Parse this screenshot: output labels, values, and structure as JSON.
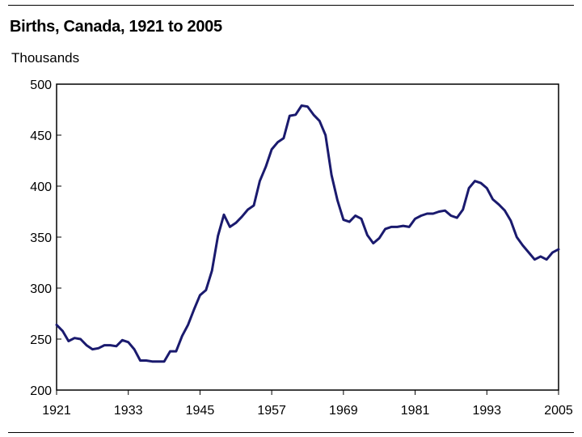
{
  "chart_data": {
    "type": "line",
    "title": "Births, Canada, 1921 to 2005",
    "ylabel": "Thousands",
    "xlabel": "",
    "xlim": [
      1921,
      2005
    ],
    "ylim": [
      200,
      500
    ],
    "xticks": [
      "1921",
      "1933",
      "1945",
      "1957",
      "1969",
      "1981",
      "1993",
      "2005"
    ],
    "yticks": [
      "200",
      "250",
      "300",
      "350",
      "400",
      "450",
      "500"
    ],
    "grid": false,
    "legend": "none",
    "line_color": "#1a1a6e",
    "series": [
      {
        "x": [
          1921,
          1922,
          1923,
          1924,
          1925,
          1926,
          1927,
          1928,
          1929,
          1930,
          1931,
          1932,
          1933,
          1934,
          1935,
          1936,
          1937,
          1938,
          1939,
          1940,
          1941,
          1942,
          1943,
          1944,
          1945,
          1946,
          1947,
          1948,
          1949,
          1950,
          1951,
          1952,
          1953,
          1954,
          1955,
          1956,
          1957,
          1958,
          1959,
          1960,
          1961,
          1962,
          1963,
          1964,
          1965,
          1966,
          1967,
          1968,
          1969,
          1970,
          1971,
          1972,
          1973,
          1974,
          1975,
          1976,
          1977,
          1978,
          1979,
          1980,
          1981,
          1982,
          1983,
          1984,
          1985,
          1986,
          1987,
          1988,
          1989,
          1990,
          1991,
          1992,
          1993,
          1994,
          1995,
          1996,
          1997,
          1998,
          1999,
          2000,
          2001,
          2002,
          2003,
          2004,
          2005
        ],
        "y": [
          264,
          258,
          248,
          251,
          250,
          244,
          240,
          241,
          244,
          244,
          243,
          249,
          247,
          240,
          229,
          229,
          228,
          228,
          228,
          238,
          238,
          253,
          264,
          279,
          293,
          298,
          317,
          351,
          372,
          360,
          364,
          370,
          377,
          381,
          405,
          419,
          436,
          443,
          447,
          469,
          470,
          479,
          478,
          470,
          464,
          450,
          411,
          386,
          367,
          365,
          371,
          368,
          352,
          344,
          349,
          358,
          360,
          360,
          361,
          360,
          368,
          371,
          373,
          373,
          375,
          376,
          371,
          369,
          377,
          398,
          405,
          403,
          398,
          387,
          382,
          376,
          366,
          350,
          342,
          335,
          328,
          331,
          328,
          335,
          338
        ]
      }
    ]
  }
}
